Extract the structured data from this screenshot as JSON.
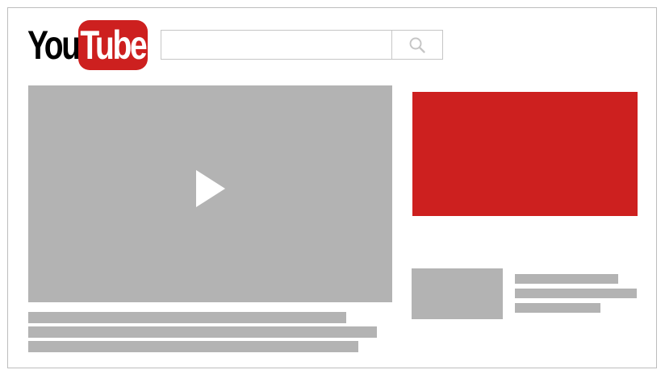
{
  "header": {
    "logo": {
      "part1": "You",
      "part2": "Tube"
    },
    "search": {
      "value": "",
      "placeholder": "",
      "icon": "search-icon"
    }
  },
  "colors": {
    "brand_red": "#cd201f",
    "placeholder_gray": "#b3b3b3",
    "border_gray": "#c6c6c6"
  },
  "main": {
    "player": {
      "icon": "play-icon"
    }
  }
}
